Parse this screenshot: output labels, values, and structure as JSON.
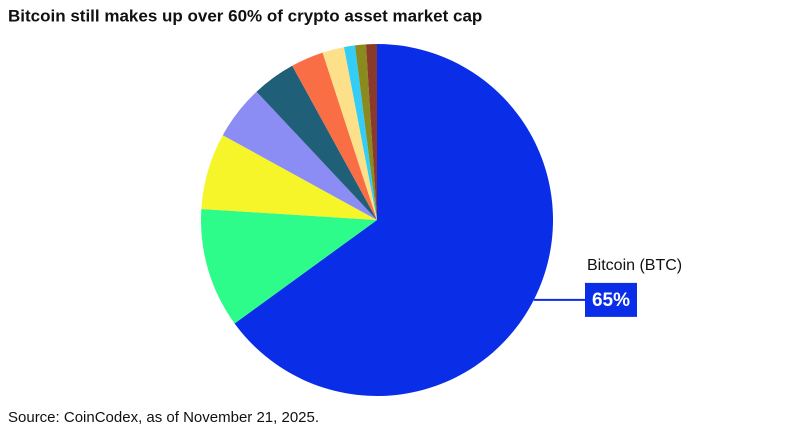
{
  "chart_data": {
    "type": "pie",
    "title": "Bitcoin still makes up over 60% of crypto asset market cap",
    "source": "Source: CoinCodex, as of November 21, 2025.",
    "categories": [
      "Bitcoin (BTC)",
      null,
      null,
      null,
      null,
      null,
      null,
      null,
      null,
      null
    ],
    "values": [
      65,
      11,
      7,
      5,
      4,
      3,
      2,
      1,
      1,
      1
    ],
    "value_labels": [
      "65%",
      null,
      null,
      null,
      null,
      null,
      null,
      null,
      null,
      null
    ],
    "colors": [
      "#0a2ee8",
      "#2efc8a",
      "#f5f52a",
      "#8c8cf5",
      "#1f5f78",
      "#fa6e45",
      "#fde08a",
      "#33cdf5",
      "#8a8a1e",
      "#8a3a2a"
    ]
  }
}
